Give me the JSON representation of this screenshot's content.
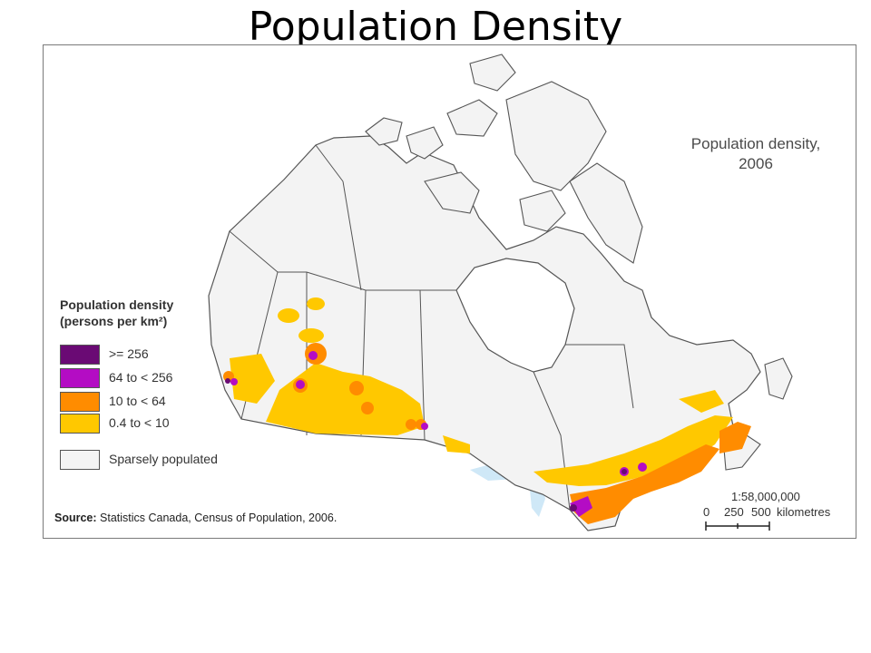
{
  "slide": {
    "title": "Population Density"
  },
  "map": {
    "title_line1": "Population density,",
    "title_line2": "2006",
    "legend": {
      "title_line1": "Population density",
      "title_line2": "(persons per km²)",
      "items": [
        {
          "label": ">= 256",
          "color": "#6a0a74"
        },
        {
          "label": "64 to < 256",
          "color": "#b40cc4"
        },
        {
          "label": "10 to < 64",
          "color": "#ff8c00"
        },
        {
          "label": "0.4 to < 10",
          "color": "#ffc800"
        },
        {
          "label": "Sparsely populated",
          "color": "#f4f4f4"
        }
      ]
    },
    "source": {
      "label": "Source:",
      "text": " Statistics Canada, Census of Population, 2006."
    },
    "scale": {
      "ratio": "1:58,000,000",
      "tick_0": "0",
      "tick_250": "250",
      "tick_500": "500",
      "unit": "kilometres"
    },
    "colors": {
      "land": "#f3f3f3",
      "water": "#cfe8f7",
      "border": "#555555"
    }
  }
}
